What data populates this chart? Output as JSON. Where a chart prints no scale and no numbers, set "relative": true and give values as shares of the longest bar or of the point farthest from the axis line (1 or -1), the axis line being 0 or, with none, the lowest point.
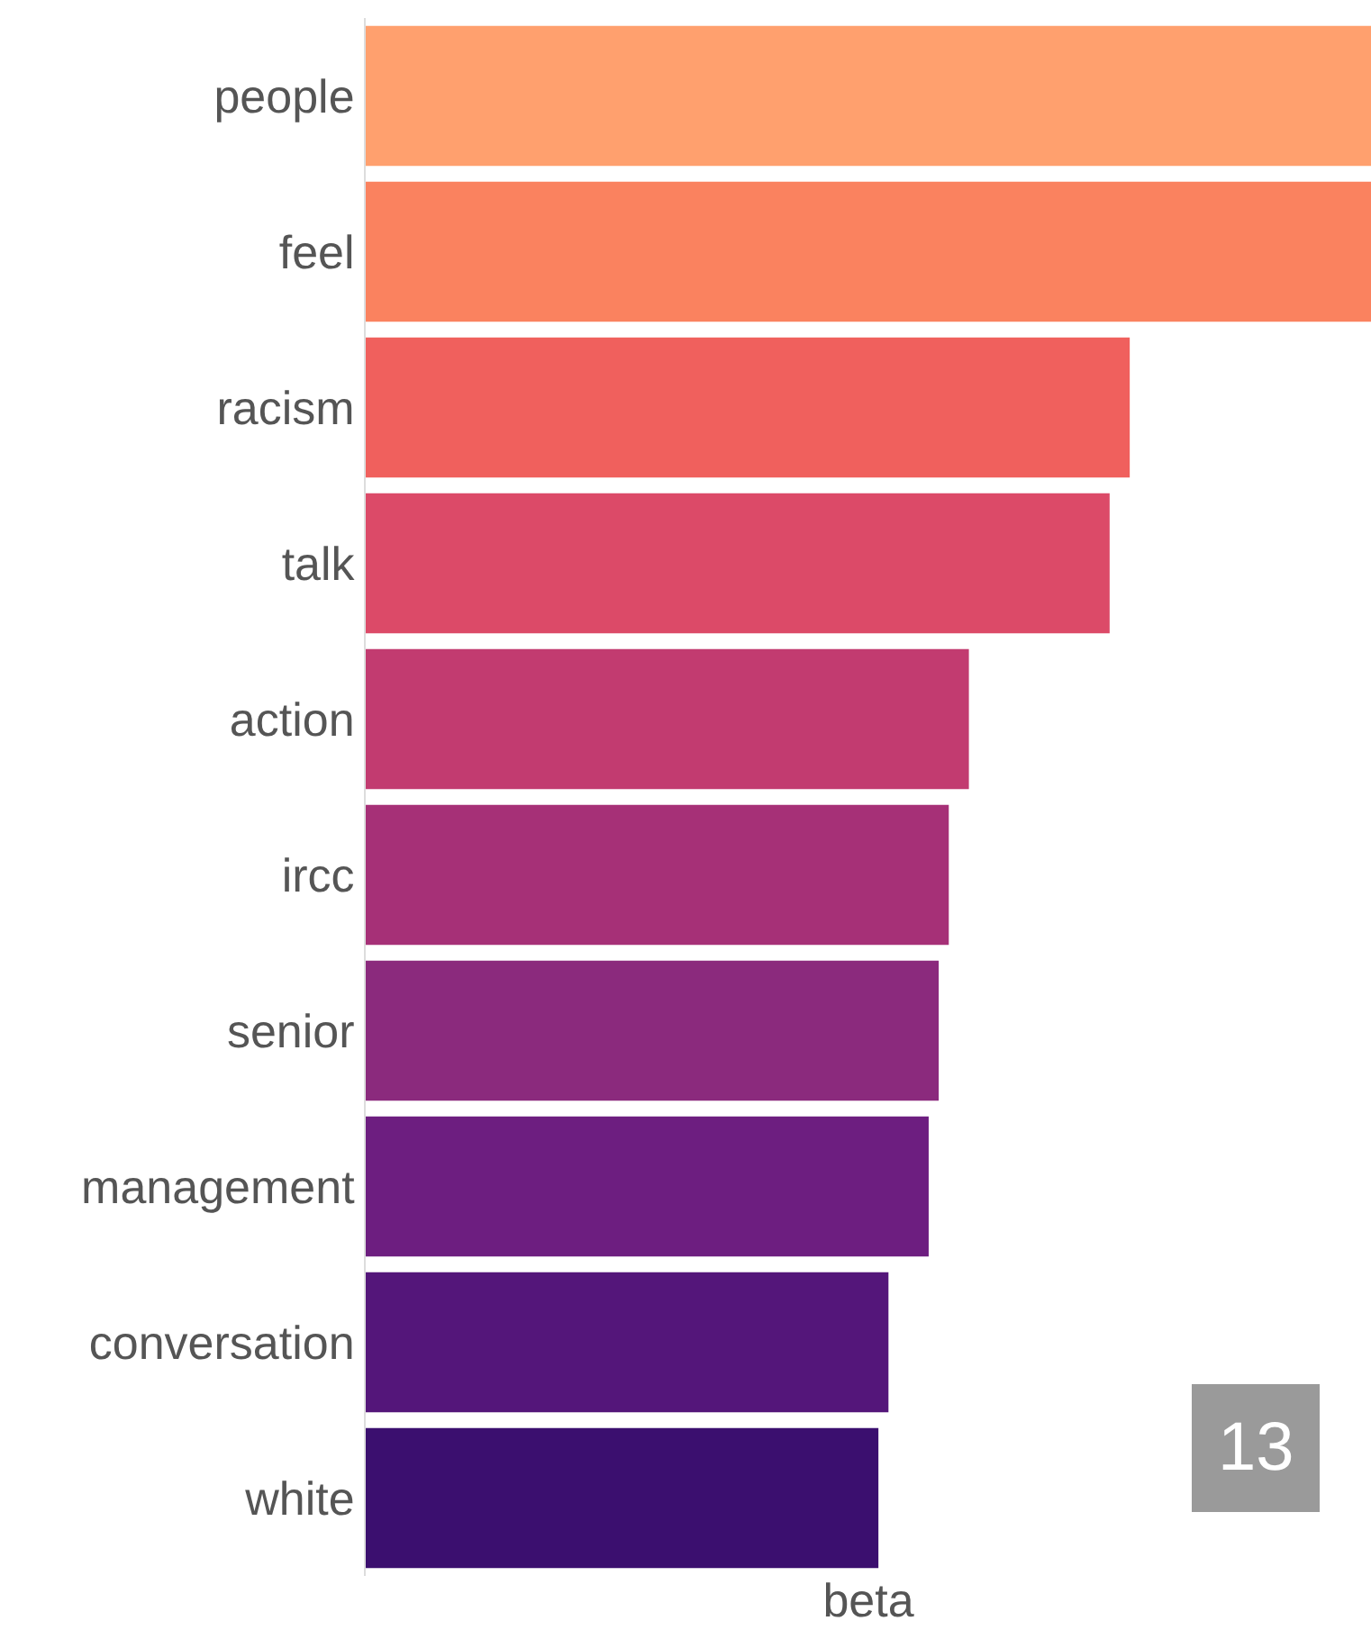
{
  "chart_data": {
    "type": "bar",
    "orientation": "horizontal",
    "relative": true,
    "xlabel": "beta",
    "categories": [
      "people",
      "feel",
      "racism",
      "talk",
      "action",
      "ircc",
      "senior",
      "management",
      "conversation",
      "white"
    ],
    "values": [
      1,
      1,
      0.76,
      0.74,
      0.6,
      0.58,
      0.57,
      0.56,
      0.52,
      0.51
    ],
    "colors": [
      "#ffa06e",
      "#fa825f",
      "#f0605d",
      "#dc4a68",
      "#c23b70",
      "#a63077",
      "#8b2a7d",
      "#6d1e80",
      "#54167a",
      "#3b0f6f"
    ],
    "annotations": [
      "13"
    ],
    "legend": false
  }
}
